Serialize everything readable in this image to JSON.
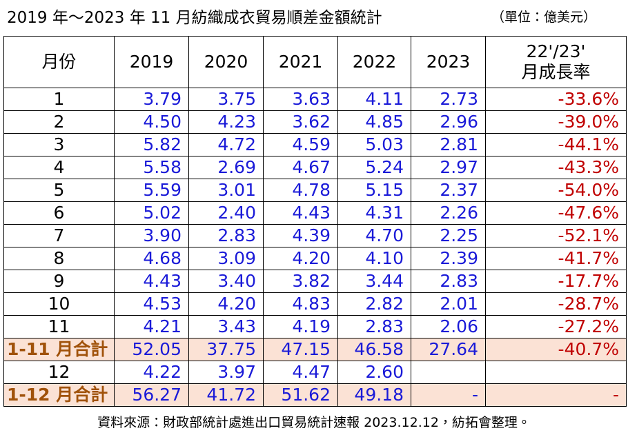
{
  "title": "2019 年～2023 年 11 月紡織成衣貿易順差金額統計",
  "unit": "（單位：億美元）",
  "table": {
    "header": [
      "月份",
      "2019",
      "2020",
      "2021",
      "2022",
      "2023"
    ],
    "header_growth": [
      "22'/23'",
      "月成長率"
    ],
    "rows": [
      [
        "1",
        "3.79",
        "3.75",
        "3.63",
        "4.11",
        "2.73",
        "-33.6%"
      ],
      [
        "2",
        "4.50",
        "4.23",
        "3.62",
        "4.85",
        "2.96",
        "-39.0%"
      ],
      [
        "3",
        "5.82",
        "4.72",
        "4.59",
        "5.03",
        "2.81",
        "-44.1%"
      ],
      [
        "4",
        "5.58",
        "2.69",
        "4.67",
        "5.24",
        "2.97",
        "-43.3%"
      ],
      [
        "5",
        "5.59",
        "3.01",
        "4.78",
        "5.15",
        "2.37",
        "-54.0%"
      ],
      [
        "6",
        "5.02",
        "2.40",
        "4.43",
        "4.31",
        "2.26",
        "-47.6%"
      ],
      [
        "7",
        "3.90",
        "2.83",
        "4.39",
        "4.70",
        "2.25",
        "-52.1%"
      ],
      [
        "8",
        "4.68",
        "3.09",
        "4.20",
        "4.10",
        "2.39",
        "-41.7%"
      ],
      [
        "9",
        "4.43",
        "3.40",
        "3.82",
        "3.44",
        "2.83",
        "-17.7%"
      ],
      [
        "10",
        "4.53",
        "4.20",
        "4.83",
        "2.82",
        "2.01",
        "-28.7%"
      ],
      [
        "11",
        "4.21",
        "3.43",
        "4.19",
        "2.83",
        "2.06",
        "-27.2%"
      ],
      [
        "1-11 月合計",
        "52.05",
        "37.75",
        "47.15",
        "46.58",
        "27.64",
        "-40.7%"
      ],
      [
        "12",
        "4.22",
        "3.97",
        "4.47",
        "2.60"
      ],
      [
        "1-12 月合計",
        "56.27",
        "41.72",
        "51.62",
        "49.18",
        "-",
        "-"
      ]
    ]
  },
  "footer": "資料來源：財政部統計處進出口貿易統計速報 2023.12.12，紡拓會整理。"
}
